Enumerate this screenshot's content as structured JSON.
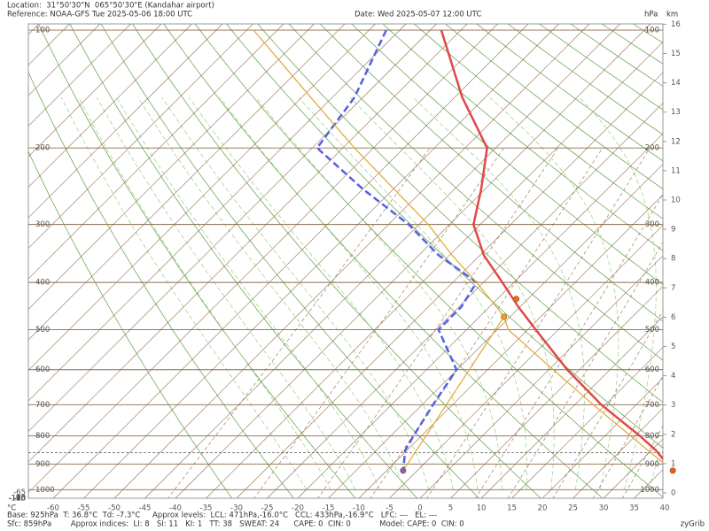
{
  "chart_data": {
    "type": "skew-t",
    "location": "Location:  31°50'30\"N  065°50'30\"E (Kandahar airport)",
    "reference": "Reference: NOAA-GFS Tue 2025-05-06 18:00 UTC",
    "date": "Date: Wed 2025-05-07 12:00 UTC",
    "footer_line1": "Base: 925hPa  T: 36.8°C  Td: -7.3°C     Approx levels:  LCL: 471hPa,-16.0°C   CCL: 433hPa,-16.9°C   LFC: ---   EL: ---",
    "footer_line2": "Sfc: 859hPa        Approx indices:  LI: 8   SI: 11   KI: 1   TT: 38   SWEAT: 24      CAPE: 0  CIN: 0            Model: CAPE: 0  CIN: 0",
    "credit": "zyGrib",
    "x_unit": "°C",
    "pressure_unit": "hPa",
    "height_unit": "km",
    "xticks": [
      -60,
      -55,
      -50,
      -45,
      -40,
      -35,
      -30,
      -25,
      -20,
      -15,
      -10,
      -5,
      0,
      5,
      10,
      15,
      20,
      25,
      30,
      35,
      40
    ],
    "left_ticks": [
      -140,
      -135,
      -130,
      -125,
      -120,
      -115,
      -110,
      -105,
      -100,
      -95,
      -90,
      -85,
      -80,
      -75,
      -70,
      -65
    ],
    "pressure_ticks": [
      100,
      200,
      300,
      400,
      500,
      600,
      700,
      800,
      900,
      1000
    ],
    "km_ticks": [
      0,
      1,
      2,
      3,
      4,
      5,
      6,
      7,
      8,
      9,
      10,
      11,
      12,
      13,
      14,
      15,
      16
    ],
    "surface_pressure": 859,
    "series": [
      {
        "color": "#e04848",
        "dash": false,
        "width": 2.5,
        "p": [
          100,
          150,
          200,
          250,
          300,
          350,
          400,
          450,
          500,
          600,
          700,
          800,
          850,
          925
        ],
        "values": [
          -73.2,
          -58.8,
          -46.4,
          -40.6,
          -36.1,
          -29.4,
          -21.9,
          -15.2,
          -8.7,
          3.0,
          14.3,
          25.7,
          30.7,
          36.8
        ]
      },
      {
        "color": "#5560e0",
        "dash": true,
        "width": 2.5,
        "p": [
          100,
          150,
          200,
          250,
          300,
          350,
          400,
          450,
          500,
          600,
          700,
          800,
          850,
          925
        ],
        "values": [
          -82.2,
          -76.4,
          -74.2,
          -59.9,
          -46.7,
          -36.8,
          -26.1,
          -24.6,
          -24.6,
          -15.1,
          -13.2,
          -11.3,
          -10.3,
          -7.3
        ]
      },
      {
        "color": "#e0a830",
        "dash": false,
        "width": 1.2,
        "p": [
          100,
          150,
          200,
          250,
          300,
          350,
          400,
          450,
          471,
          500,
          600,
          700,
          800,
          850,
          925
        ],
        "values": [
          -103.9,
          -83.6,
          -68.1,
          -54.8,
          -43.5,
          -34.6,
          -26.1,
          -18.8,
          -16.0,
          -13.2,
          0.7,
          13.0,
          24.2,
          29.4,
          36.8
        ]
      },
      {
        "color": "#e0a830",
        "dash": false,
        "width": 1.2,
        "p": [
          471,
          925
        ],
        "values": [
          -16.0,
          -7.3
        ]
      }
    ],
    "points": [
      {
        "p": 471,
        "value": -16.0,
        "color": "#e8a020"
      },
      {
        "p": 433,
        "value": -16.9,
        "color": "#e07020"
      },
      {
        "p": 925,
        "value": 36.8,
        "color": "#e06020"
      },
      {
        "p": 925,
        "value": -7.3,
        "color": "#8060c0"
      }
    ]
  }
}
